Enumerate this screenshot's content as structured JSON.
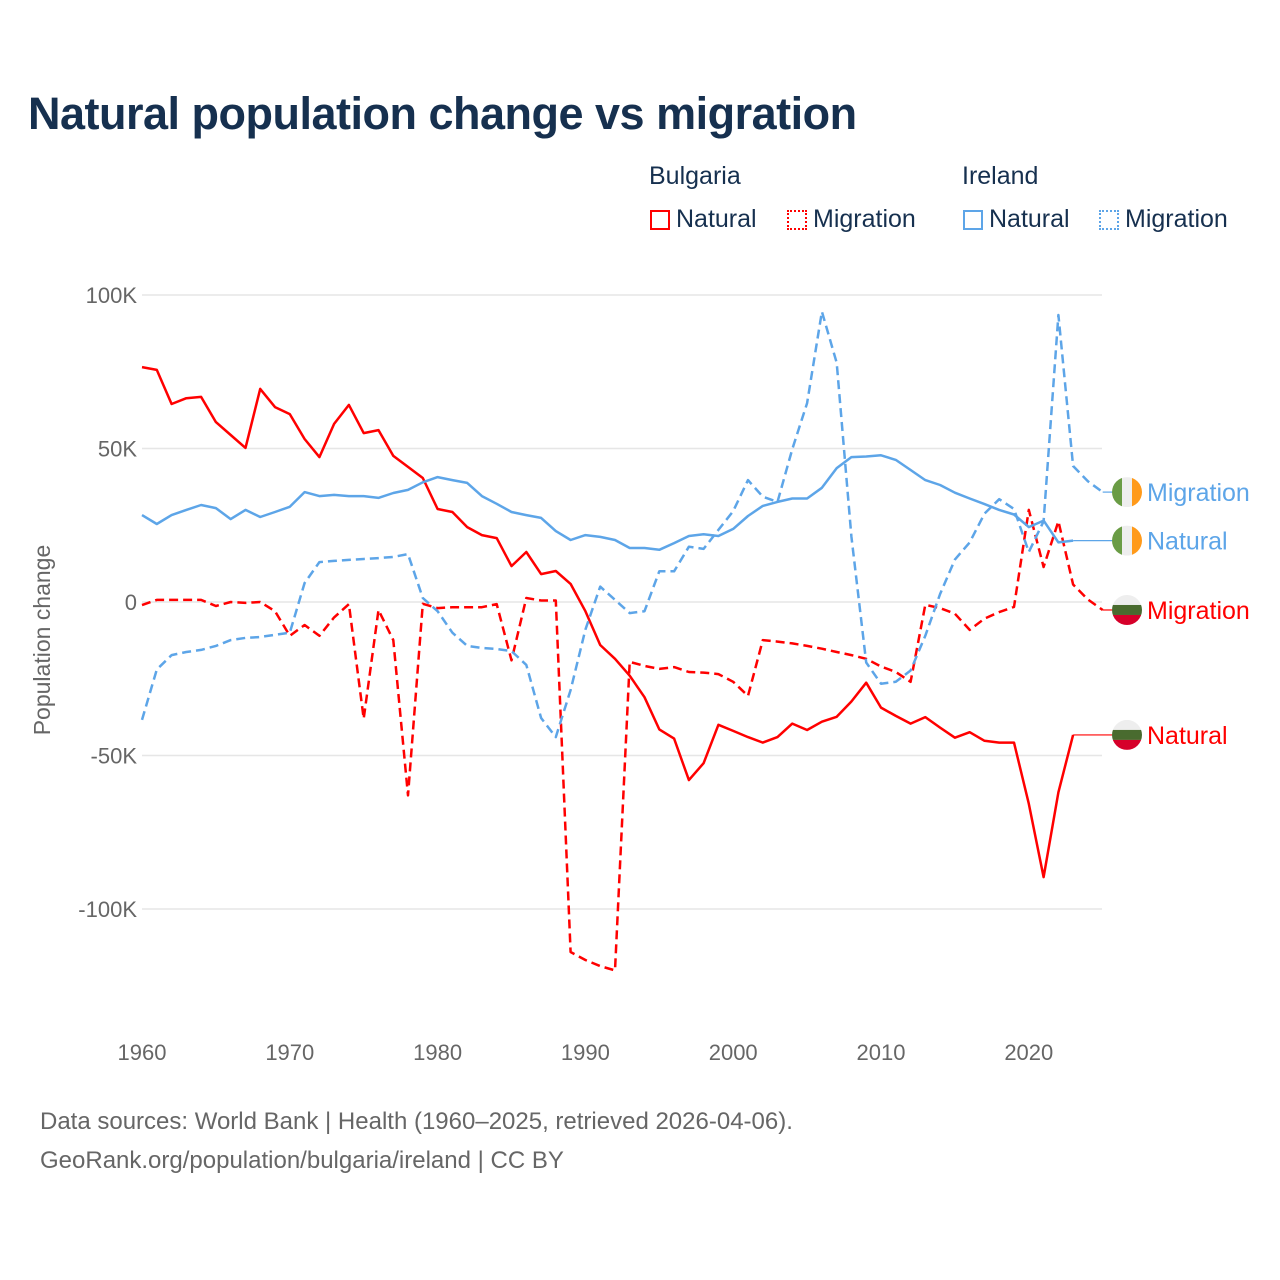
{
  "chart_data": {
    "type": "line",
    "title": "Natural population change vs migration",
    "xlabel": "",
    "ylabel": "Population change",
    "xlim": [
      1960,
      2025
    ],
    "ylim": [
      -125,
      105
    ],
    "y_unit": "thousands",
    "grid": true,
    "x_ticks": [
      "1960",
      "1970",
      "1980",
      "1990",
      "2000",
      "2010",
      "2020"
    ],
    "x_tick_values": [
      1960,
      1970,
      1980,
      1990,
      2000,
      2010,
      2020
    ],
    "y_ticks": [
      "100K",
      "50K",
      "0",
      "-50K",
      "-100K"
    ],
    "y_tick_values": [
      100,
      50,
      0,
      -50,
      -100
    ],
    "legend_placement": "top-right",
    "legend": {
      "groups": [
        {
          "name": "Bulgaria",
          "items": [
            "Natural",
            "Migration"
          ]
        },
        {
          "name": "Ireland",
          "items": [
            "Natural",
            "Migration"
          ]
        }
      ]
    },
    "series": [
      {
        "country": "Bulgaria",
        "name": "Natural",
        "end_label": "Natural",
        "color": "#ff0000",
        "style": "solid",
        "start_year": 1960,
        "values": [
          76.5,
          75.6,
          64.5,
          66.4,
          66.8,
          58.6,
          54.4,
          50.2,
          69.4,
          63.5,
          61.2,
          53.1,
          47.2,
          58,
          64.2,
          55,
          56,
          47.6,
          44,
          40.4,
          30.3,
          29.3,
          24.4,
          21.8,
          20.8,
          11.7,
          16.3,
          9.1,
          10.1,
          5.9,
          -3,
          -14,
          -18.5,
          -24,
          -31,
          -41.5,
          -44.5,
          -58,
          -52.5,
          -40,
          -42,
          -44,
          -45.8,
          -44,
          -39.6,
          -41.7,
          -39,
          -37.4,
          -32.4,
          -26.3,
          -34.4,
          -37.1,
          -39.6,
          -37.5,
          -40.9,
          -44.2,
          -42.4,
          -45.2,
          -45.8,
          -45.8,
          -65.7,
          -89.6,
          -62,
          -43.3
        ]
      },
      {
        "country": "Bulgaria",
        "name": "Migration",
        "end_label": "Migration",
        "color": "#ff0000",
        "style": "dashed",
        "start_year": 1960,
        "values": [
          -1,
          0.7,
          0.7,
          0.7,
          0.7,
          -1.3,
          0,
          -0.3,
          0,
          -3,
          -11,
          -7.5,
          -11,
          -5,
          -0.7,
          -38,
          -2.6,
          -12.4,
          -63,
          -0.6,
          -2,
          -1.7,
          -1.7,
          -1.7,
          -0.7,
          -19,
          1.3,
          0.5,
          0.5,
          -114,
          -116.6,
          -118.6,
          -120,
          -19.5,
          -20.8,
          -21.8,
          -21.2,
          -22.8,
          -23,
          -23.5,
          -26,
          -30.6,
          -12.4,
          -12.9,
          -13.5,
          -14.3,
          -15.2,
          -16.3,
          -17.3,
          -18.5,
          -21,
          -22.8,
          -26,
          -0.9,
          -2,
          -3.8,
          -9.1,
          -5.4,
          -3.3,
          -1.6,
          30,
          11.4,
          26.3,
          5.7,
          0.8,
          -2.6
        ]
      },
      {
        "country": "Ireland",
        "name": "Natural",
        "end_label": "Natural",
        "color": "#5da5e8",
        "style": "solid",
        "start_year": 1960,
        "values": [
          28.3,
          25.4,
          28.3,
          30,
          31.6,
          30.6,
          27,
          30,
          27.7,
          29.3,
          31,
          35.8,
          34.5,
          34.9,
          34.5,
          34.5,
          33.9,
          35.5,
          36.5,
          39,
          40.7,
          39.7,
          38.8,
          34.5,
          32,
          29.3,
          28.3,
          27.4,
          23.1,
          20.2,
          21.8,
          21.2,
          20.2,
          17.6,
          17.6,
          17,
          19.2,
          21.5,
          22.1,
          21.5,
          23.8,
          28,
          31.3,
          32.6,
          33.7,
          33.7,
          37.2,
          43.6,
          47.2,
          47.4,
          47.8,
          46.3,
          43,
          39.7,
          38.1,
          35.6,
          33.7,
          31.9,
          30,
          28.5,
          24.4,
          26.5,
          19.4,
          20
        ]
      },
      {
        "country": "Ireland",
        "name": "Migration",
        "end_label": "Migration",
        "color": "#5da5e8",
        "style": "dashed",
        "start_year": 1960,
        "values": [
          -38.4,
          -22,
          -17.3,
          -16.3,
          -15.6,
          -14.3,
          -12.4,
          -11.7,
          -11.4,
          -10.7,
          -10,
          6.2,
          13,
          13.4,
          13.7,
          14,
          14.3,
          14.7,
          15.6,
          1.3,
          -3,
          -10,
          -14.3,
          -15,
          -15.3,
          -16,
          -20.5,
          -37.8,
          -44,
          -28.7,
          -9,
          5,
          0.7,
          -3.6,
          -3,
          10,
          10,
          18,
          17.3,
          23.5,
          29.6,
          39.7,
          34.3,
          32.6,
          49.8,
          64.8,
          94.6,
          77.9,
          21.3,
          -19.7,
          -26.6,
          -26,
          -22.3,
          -11,
          2.6,
          13.8,
          19.4,
          28.8,
          33.5,
          30.3,
          16.3,
          26.3,
          93.5,
          44.3,
          39.3,
          35.8
        ]
      }
    ]
  },
  "footer": {
    "line1": "Data sources: World Bank | Health (1960–2025, retrieved 2026-04-06).",
    "line2": "GeoRank.org/population/bulgaria/ireland | CC BY"
  }
}
